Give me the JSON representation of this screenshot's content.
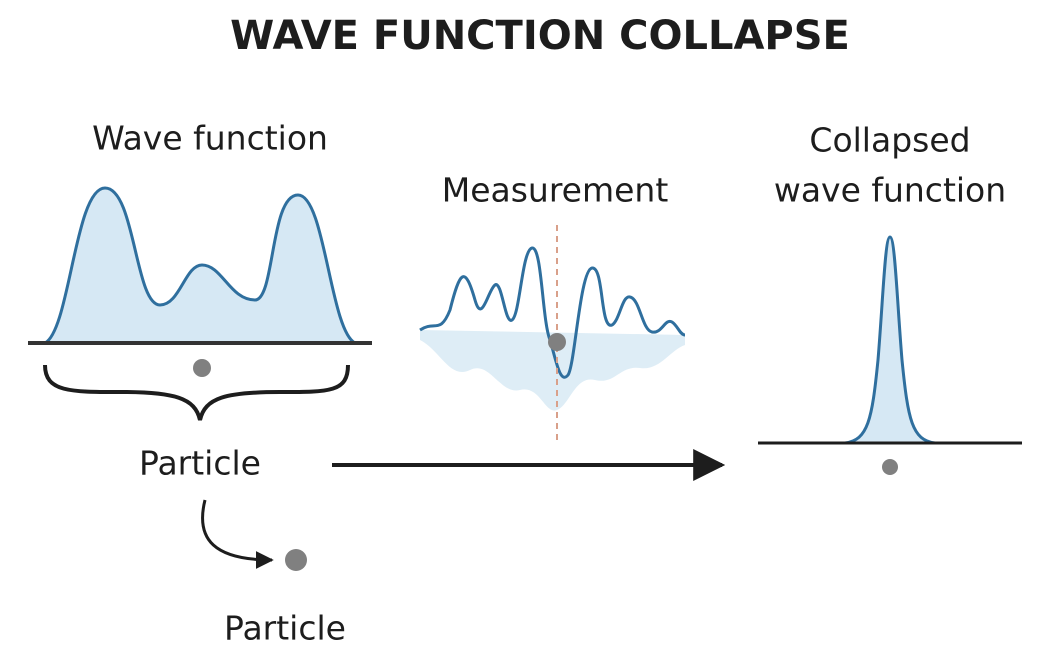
{
  "title": "WAVE FUNCTION COLLAPSE",
  "panels": [
    {
      "label": [
        "Wave function"
      ]
    },
    {
      "label": [
        "Measurement"
      ]
    },
    {
      "label": [
        "Collapsed",
        "wave function"
      ]
    }
  ],
  "particle_labels": [
    "Particle",
    "Particle"
  ]
}
